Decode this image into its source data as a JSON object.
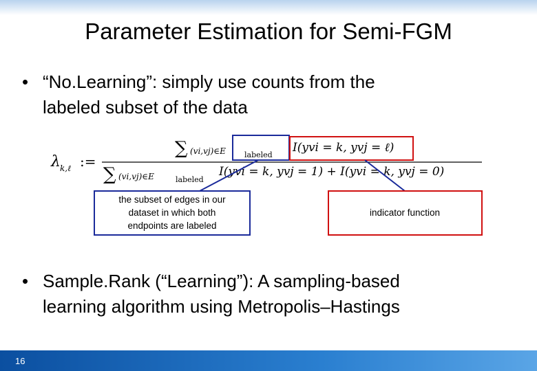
{
  "slide": {
    "title": "Parameter Estimation for Semi-FGM",
    "bullets": [
      {
        "lines": [
          "“No.Learning”: simply use counts from the",
          "labeled subset of the data"
        ]
      },
      {
        "lines": [
          "Sample.Rank (“Learning”): A sampling-based",
          "learning algorithm using Metropolis–Hastings"
        ]
      }
    ],
    "formula": {
      "lhs": "λ",
      "lhs_sub": "k,ℓ",
      "assign": ":=",
      "numerator": {
        "sum": "∑",
        "range": "(vi,vj)∈E",
        "range_sub": "labeled",
        "term": "I(yvi = k, yvj = ℓ)"
      },
      "denominator": {
        "sum": "∑",
        "range": "(vi,vj)∈E",
        "range_sub": "labeled",
        "term": "I(yvi = k, yvj = 1) + I(yvi = k, yvj = 0)"
      }
    },
    "callouts": [
      {
        "text": [
          "the subset of edges in our",
          "dataset in which both",
          "endpoints are labeled"
        ]
      },
      {
        "text": [
          "indicator function"
        ]
      }
    ],
    "page_number": "16"
  }
}
